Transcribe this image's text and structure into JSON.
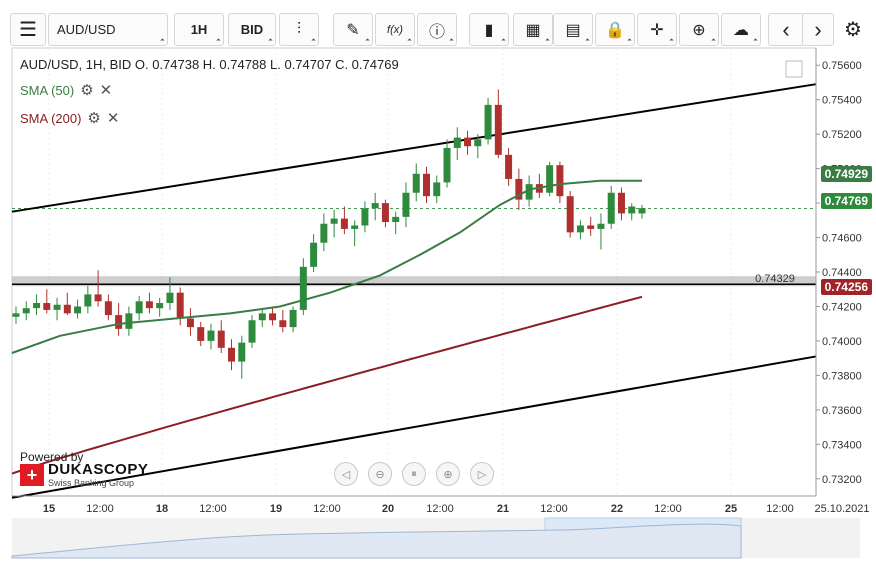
{
  "toolbar": {
    "symbol": "AUD/USD",
    "timeframe": "1H",
    "price_type": "BID",
    "buttons": [
      {
        "name": "candlestick-type-button",
        "glyph": "⫶"
      },
      {
        "name": "draw-tool-button",
        "glyph": "✎"
      },
      {
        "name": "function-button",
        "glyph": "f(x)"
      },
      {
        "name": "info-button",
        "glyph": "ⓘ"
      },
      {
        "name": "indicators-button",
        "glyph": "▮"
      },
      {
        "name": "calendar-button",
        "glyph": "▦"
      },
      {
        "name": "template-button",
        "glyph": "▤"
      },
      {
        "name": "lock-button",
        "glyph": "🔒"
      },
      {
        "name": "crosshair-button",
        "glyph": "✛"
      },
      {
        "name": "zoom-button",
        "glyph": "⊕"
      },
      {
        "name": "cloud-upload-button",
        "glyph": "☁"
      }
    ],
    "nav_prev": "‹",
    "nav_next": "›",
    "settings": "⚙",
    "menu_glyph": "☰"
  },
  "legend": {
    "ohlc": "AUD/USD, 1H, BID   O. 0.74738 H. 0.74788 L. 0.74707 C. 0.74769",
    "sma50_label": "SMA (50)",
    "sma200_label": "SMA (200)",
    "gear": "⚙",
    "close": "✕"
  },
  "price_tags": {
    "sma50": "0.74929",
    "current": "0.74769",
    "sma200": "0.74256",
    "hline": "0.74329"
  },
  "powered": {
    "by": "Powered by",
    "brand": "DUKASCOPY",
    "sub": "Swiss Banking Group"
  },
  "nav_controls": [
    {
      "name": "scroll-left-button",
      "glyph": "◁"
    },
    {
      "name": "zoom-out-button",
      "glyph": "⊖"
    },
    {
      "name": "reset-button",
      "glyph": "⏸"
    },
    {
      "name": "zoom-in-button",
      "glyph": "⊕"
    },
    {
      "name": "scroll-right-button",
      "glyph": "▷"
    }
  ],
  "colors": {
    "bull": "#2e8b3e",
    "bear": "#b03030",
    "sma50": "#3a7d44",
    "sma200": "#8b1f24",
    "trend": "#000000",
    "current_tag": "#2e8b3e",
    "sma200_tag": "#a0232a"
  },
  "chart_data": {
    "type": "candlestick",
    "title": "AUD/USD, 1H, BID",
    "ylim": [
      0.731,
      0.757
    ],
    "y_ticks": [
      "0.73200",
      "0.73400",
      "0.73600",
      "0.73800",
      "0.74000",
      "0.74200",
      "0.74400",
      "0.74600",
      "0.74800",
      "0.75000",
      "0.75200",
      "0.75400",
      "0.75600"
    ],
    "x_ticks": [
      "15",
      "12:00",
      "18",
      "12:00",
      "19",
      "12:00",
      "20",
      "12:00",
      "21",
      "12:00",
      "22",
      "12:00",
      "25",
      "12:00",
      "25.10.2021"
    ],
    "series": [
      {
        "name": "SMA (50)",
        "last": 0.74929
      },
      {
        "name": "SMA (200)",
        "last": 0.74256
      }
    ],
    "horizontal_line": 0.74329,
    "current_price": 0.74769,
    "candles": [
      {
        "o": 0.7414,
        "h": 0.742,
        "l": 0.741,
        "c": 0.7416
      },
      {
        "o": 0.7416,
        "h": 0.7423,
        "l": 0.7412,
        "c": 0.7419
      },
      {
        "o": 0.7419,
        "h": 0.7427,
        "l": 0.7415,
        "c": 0.7422
      },
      {
        "o": 0.7422,
        "h": 0.743,
        "l": 0.7416,
        "c": 0.7418
      },
      {
        "o": 0.7418,
        "h": 0.7425,
        "l": 0.7412,
        "c": 0.7421
      },
      {
        "o": 0.7421,
        "h": 0.7428,
        "l": 0.7415,
        "c": 0.7416
      },
      {
        "o": 0.7416,
        "h": 0.7424,
        "l": 0.7413,
        "c": 0.742
      },
      {
        "o": 0.742,
        "h": 0.7432,
        "l": 0.7416,
        "c": 0.7427
      },
      {
        "o": 0.7427,
        "h": 0.7441,
        "l": 0.742,
        "c": 0.7423
      },
      {
        "o": 0.7423,
        "h": 0.7427,
        "l": 0.7412,
        "c": 0.7415
      },
      {
        "o": 0.7415,
        "h": 0.7422,
        "l": 0.7403,
        "c": 0.7407
      },
      {
        "o": 0.7407,
        "h": 0.742,
        "l": 0.7403,
        "c": 0.7416
      },
      {
        "o": 0.7416,
        "h": 0.7426,
        "l": 0.7412,
        "c": 0.7423
      },
      {
        "o": 0.7423,
        "h": 0.7428,
        "l": 0.7416,
        "c": 0.7419
      },
      {
        "o": 0.7419,
        "h": 0.7425,
        "l": 0.7414,
        "c": 0.7422
      },
      {
        "o": 0.7422,
        "h": 0.7437,
        "l": 0.7418,
        "c": 0.7428
      },
      {
        "o": 0.7428,
        "h": 0.7431,
        "l": 0.7409,
        "c": 0.7413
      },
      {
        "o": 0.7413,
        "h": 0.7419,
        "l": 0.7403,
        "c": 0.7408
      },
      {
        "o": 0.7408,
        "h": 0.7411,
        "l": 0.7397,
        "c": 0.74
      },
      {
        "o": 0.74,
        "h": 0.741,
        "l": 0.7395,
        "c": 0.7406
      },
      {
        "o": 0.7406,
        "h": 0.7412,
        "l": 0.7393,
        "c": 0.7396
      },
      {
        "o": 0.7396,
        "h": 0.7401,
        "l": 0.7383,
        "c": 0.7388
      },
      {
        "o": 0.7388,
        "h": 0.7403,
        "l": 0.7378,
        "c": 0.7399
      },
      {
        "o": 0.7399,
        "h": 0.7415,
        "l": 0.7396,
        "c": 0.7412
      },
      {
        "o": 0.7412,
        "h": 0.7419,
        "l": 0.7408,
        "c": 0.7416
      },
      {
        "o": 0.7416,
        "h": 0.742,
        "l": 0.7409,
        "c": 0.7412
      },
      {
        "o": 0.7412,
        "h": 0.7418,
        "l": 0.7405,
        "c": 0.7408
      },
      {
        "o": 0.7408,
        "h": 0.742,
        "l": 0.7405,
        "c": 0.7418
      },
      {
        "o": 0.7418,
        "h": 0.7448,
        "l": 0.7415,
        "c": 0.7443
      },
      {
        "o": 0.7443,
        "h": 0.7462,
        "l": 0.744,
        "c": 0.7457
      },
      {
        "o": 0.7457,
        "h": 0.7474,
        "l": 0.7452,
        "c": 0.7468
      },
      {
        "o": 0.7468,
        "h": 0.7476,
        "l": 0.746,
        "c": 0.7471
      },
      {
        "o": 0.7471,
        "h": 0.7478,
        "l": 0.7462,
        "c": 0.7465
      },
      {
        "o": 0.7465,
        "h": 0.747,
        "l": 0.7455,
        "c": 0.7467
      },
      {
        "o": 0.7467,
        "h": 0.7481,
        "l": 0.7463,
        "c": 0.7477
      },
      {
        "o": 0.7477,
        "h": 0.7486,
        "l": 0.747,
        "c": 0.748
      },
      {
        "o": 0.748,
        "h": 0.7482,
        "l": 0.7466,
        "c": 0.7469
      },
      {
        "o": 0.7469,
        "h": 0.7475,
        "l": 0.7462,
        "c": 0.7472
      },
      {
        "o": 0.7472,
        "h": 0.7492,
        "l": 0.7466,
        "c": 0.7486
      },
      {
        "o": 0.7486,
        "h": 0.7503,
        "l": 0.7481,
        "c": 0.7497
      },
      {
        "o": 0.7497,
        "h": 0.7501,
        "l": 0.748,
        "c": 0.7484
      },
      {
        "o": 0.7484,
        "h": 0.7496,
        "l": 0.748,
        "c": 0.7492
      },
      {
        "o": 0.7492,
        "h": 0.7517,
        "l": 0.7489,
        "c": 0.7512
      },
      {
        "o": 0.7512,
        "h": 0.7524,
        "l": 0.7505,
        "c": 0.7518
      },
      {
        "o": 0.7518,
        "h": 0.7522,
        "l": 0.7508,
        "c": 0.7513
      },
      {
        "o": 0.7513,
        "h": 0.752,
        "l": 0.7506,
        "c": 0.7517
      },
      {
        "o": 0.7517,
        "h": 0.7541,
        "l": 0.7514,
        "c": 0.7537
      },
      {
        "o": 0.7537,
        "h": 0.7546,
        "l": 0.7506,
        "c": 0.7508
      },
      {
        "o": 0.7508,
        "h": 0.7512,
        "l": 0.749,
        "c": 0.7494
      },
      {
        "o": 0.7494,
        "h": 0.75,
        "l": 0.7476,
        "c": 0.7482
      },
      {
        "o": 0.7482,
        "h": 0.7496,
        "l": 0.7478,
        "c": 0.7491
      },
      {
        "o": 0.7491,
        "h": 0.7497,
        "l": 0.7483,
        "c": 0.7486
      },
      {
        "o": 0.7486,
        "h": 0.7504,
        "l": 0.7484,
        "c": 0.7502
      },
      {
        "o": 0.7502,
        "h": 0.7504,
        "l": 0.748,
        "c": 0.7484
      },
      {
        "o": 0.7484,
        "h": 0.7487,
        "l": 0.746,
        "c": 0.7463
      },
      {
        "o": 0.7463,
        "h": 0.747,
        "l": 0.7459,
        "c": 0.7467
      },
      {
        "o": 0.7467,
        "h": 0.7472,
        "l": 0.7461,
        "c": 0.7465
      },
      {
        "o": 0.7465,
        "h": 0.7474,
        "l": 0.7453,
        "c": 0.7468
      },
      {
        "o": 0.7468,
        "h": 0.749,
        "l": 0.7465,
        "c": 0.7486
      },
      {
        "o": 0.7486,
        "h": 0.7489,
        "l": 0.747,
        "c": 0.7474
      },
      {
        "o": 0.7474,
        "h": 0.748,
        "l": 0.747,
        "c": 0.7478
      },
      {
        "o": 0.7474,
        "h": 0.7479,
        "l": 0.7471,
        "c": 0.7477
      }
    ]
  }
}
